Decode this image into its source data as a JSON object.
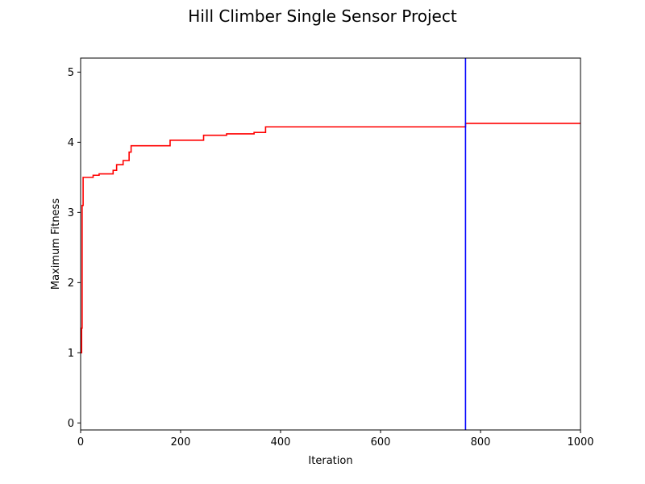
{
  "chart_data": {
    "type": "line",
    "title": "Hill Climber Single Sensor Project",
    "xlabel": "Iteration",
    "ylabel": "Maximum Fitness",
    "xlim": [
      0,
      1000
    ],
    "ylim": [
      -0.1,
      5.2
    ],
    "x_ticks": [
      0,
      200,
      400,
      600,
      800,
      1000
    ],
    "y_ticks": [
      0,
      1,
      2,
      3,
      4,
      5
    ],
    "grid": false,
    "legend": "none",
    "series": [
      {
        "color": "#ff0000",
        "style": "step",
        "points": [
          [
            0,
            1.0
          ],
          [
            2,
            1.35
          ],
          [
            3,
            3.1
          ],
          [
            5,
            3.5
          ],
          [
            25,
            3.53
          ],
          [
            37,
            3.55
          ],
          [
            65,
            3.6
          ],
          [
            72,
            3.68
          ],
          [
            85,
            3.74
          ],
          [
            97,
            3.86
          ],
          [
            101,
            3.95
          ],
          [
            179,
            4.03
          ],
          [
            246,
            4.1
          ],
          [
            292,
            4.12
          ],
          [
            347,
            4.14
          ],
          [
            370,
            4.22
          ],
          [
            770,
            4.27
          ],
          [
            1000,
            4.27
          ]
        ]
      }
    ],
    "vlines": [
      {
        "x": 770,
        "color": "#0000ff"
      }
    ]
  }
}
